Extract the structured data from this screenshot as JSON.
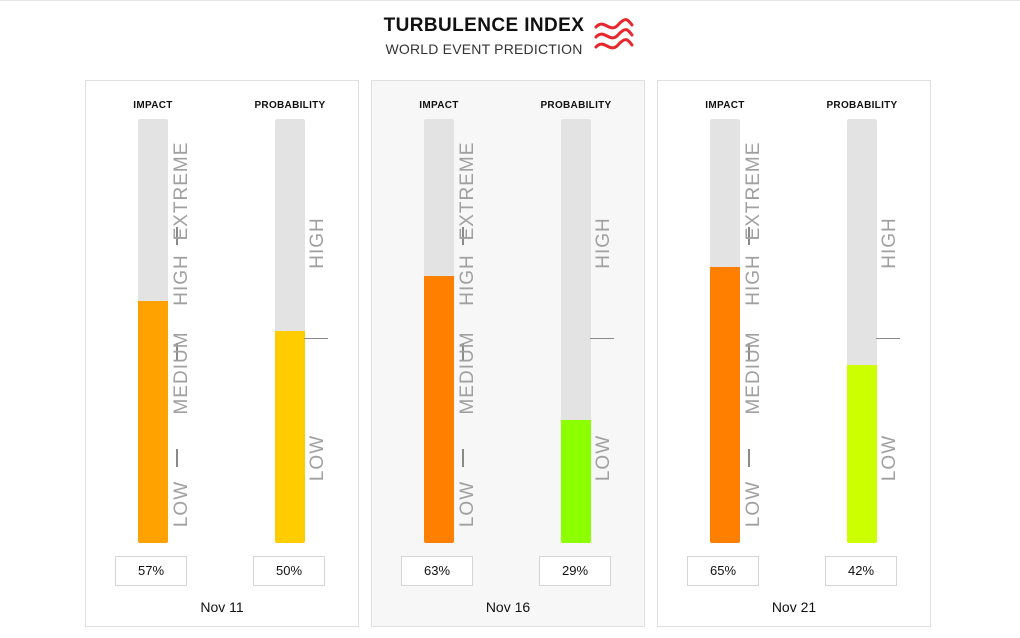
{
  "header": {
    "title": "TURBULENCE INDEX",
    "subtitle": "WORLD EVENT PREDICTION",
    "logo_icon": "wave-lines-icon",
    "logo_color": "#e8262b"
  },
  "labels": {
    "impact": "IMPACT",
    "probability": "PROBABILITY"
  },
  "impact_scale": [
    "LOW",
    "MEDIUM",
    "HIGH",
    "EXTREME"
  ],
  "probability_scale": [
    "LOW",
    "HIGH"
  ],
  "chart_data": {
    "type": "bar",
    "orientation": "vertical-gauge",
    "categories": [
      "Nov 11",
      "Nov 16",
      "Nov 21"
    ],
    "ylim": [
      0,
      100
    ],
    "series": [
      {
        "name": "IMPACT",
        "values": [
          57,
          63,
          65
        ],
        "labels": [
          "57%",
          "63%",
          "65%"
        ],
        "colors": [
          "#ffa200",
          "#ff8000",
          "#ff8000"
        ]
      },
      {
        "name": "PROBABILITY",
        "values": [
          50,
          29,
          42
        ],
        "labels": [
          "50%",
          "29%",
          "42%"
        ],
        "colors": [
          "#ffcc00",
          "#8cff00",
          "#ccff00"
        ]
      }
    ],
    "impact_bands": [
      "LOW",
      "MEDIUM",
      "HIGH",
      "EXTREME"
    ],
    "probability_bands": [
      "LOW",
      "HIGH"
    ],
    "highlighted_category": "Nov 16",
    "track_color": "#e3e3e3"
  }
}
